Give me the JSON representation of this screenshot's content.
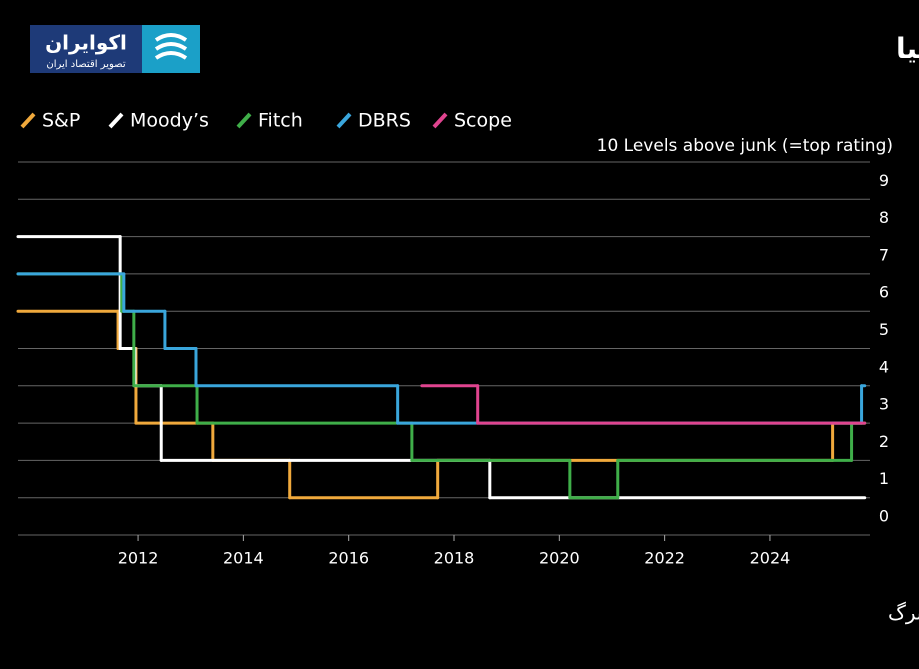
{
  "chart_data": {
    "type": "step-line",
    "title": "روند رتبه اعتباری ایتالیا",
    "logo": {
      "name": "اکوایران",
      "tagline": "تصویر اقتصاد ایران"
    },
    "axis_note": "10 Levels above junk (=top rating)",
    "source": "منبع: بلومبرگ",
    "xlim": [
      2009.72,
      2025.9
    ],
    "xticks": [
      2012,
      2014,
      2016,
      2018,
      2020,
      2022,
      2024
    ],
    "ylim": [
      0,
      10
    ],
    "yticks": [
      0,
      1,
      2,
      3,
      4,
      5,
      6,
      7,
      8,
      9
    ],
    "grid": true,
    "series": [
      {
        "name": "S&P",
        "color": "#f0a93c",
        "x": [
          2009.72,
          2011.62,
          2011.96,
          2013.42,
          2014.88,
          2017.69,
          2025.19,
          2025.8
        ],
        "values": [
          6,
          5,
          3,
          2,
          1,
          2,
          3,
          3
        ]
      },
      {
        "name": "Moody’s",
        "color": "#ffffff",
        "x": [
          2009.72,
          2011.66,
          2011.94,
          2012.44,
          2018.68,
          2025.8
        ],
        "values": [
          8,
          5,
          4,
          2,
          1,
          1
        ]
      },
      {
        "name": "Fitch",
        "color": "#3fae49",
        "x": [
          2009.72,
          2011.69,
          2011.92,
          2013.12,
          2017.2,
          2020.2,
          2021.11,
          2025.55,
          2025.8
        ],
        "values": [
          7,
          6,
          4,
          3,
          2,
          1,
          2,
          3,
          3
        ]
      },
      {
        "name": "DBRS",
        "color": "#3aa6dc",
        "x": [
          2009.72,
          2011.73,
          2012.51,
          2013.1,
          2016.93,
          2025.74,
          2025.8
        ],
        "values": [
          7,
          6,
          5,
          4,
          3,
          4,
          4
        ]
      },
      {
        "name": "Scope",
        "color": "#e0448f",
        "x": [
          2017.39,
          2018.45,
          2025.8
        ],
        "values": [
          4,
          3,
          3
        ]
      }
    ]
  }
}
